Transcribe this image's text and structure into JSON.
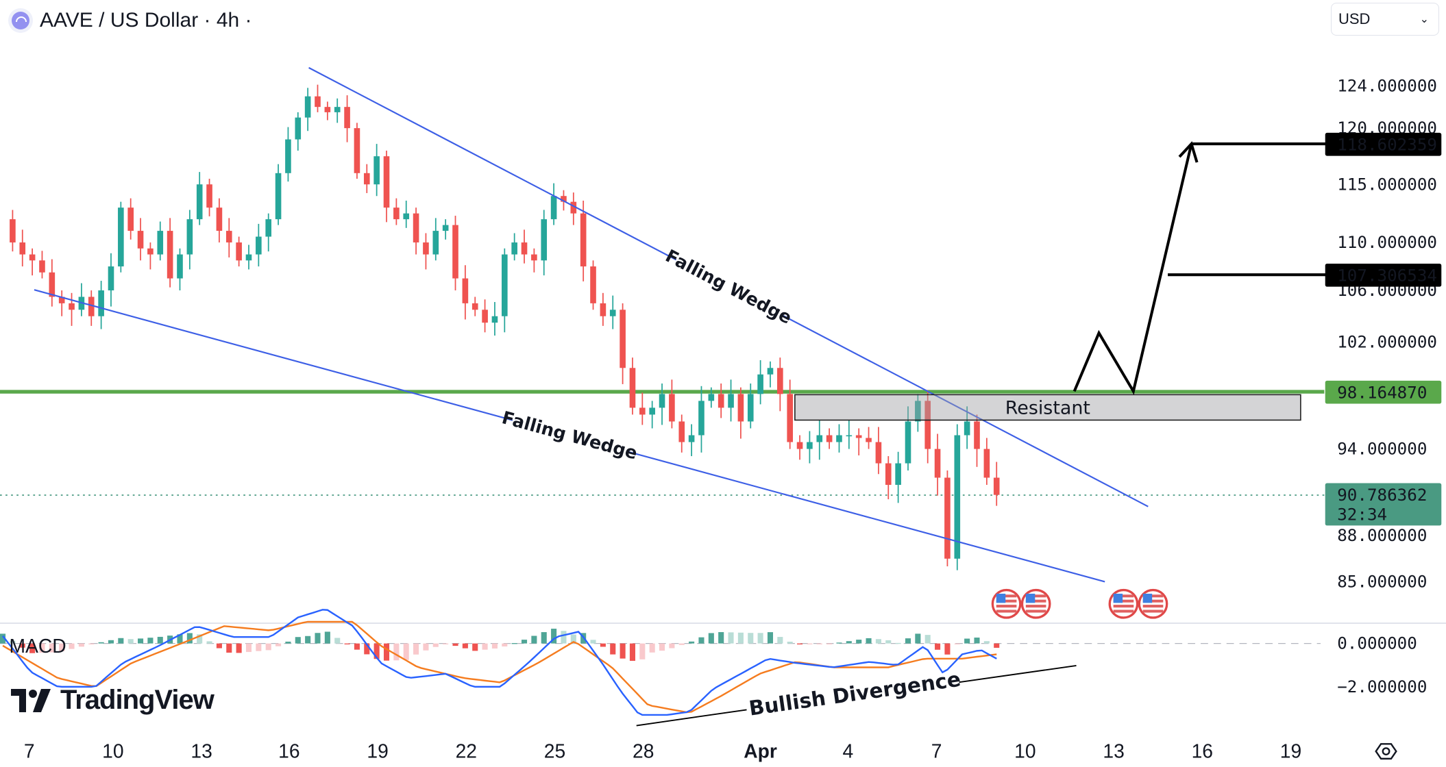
{
  "header": {
    "title": "AAVE / US Dollar · 4h ·",
    "symbol_icon": "aave-logo-icon"
  },
  "currency_select": {
    "value": "USD",
    "icon": "chevron-down-icon"
  },
  "logo": {
    "text": "TradingView"
  },
  "colors": {
    "up": "#26a69a",
    "down": "#ef5350",
    "trendline": "#3d5fe6",
    "support": "#5aa84b",
    "macd": "#2962ff",
    "signal": "#f57c1f",
    "last_price": "#4a9a82"
  },
  "chart_data": {
    "type": "candlestick",
    "title": "AAVE / US Dollar · 4h",
    "y_ticks": [
      "124.000000",
      "120.000000",
      "115.000000",
      "110.000000",
      "106.000000",
      "102.000000",
      "94.000000",
      "88.000000",
      "85.000000"
    ],
    "x_ticks": [
      {
        "label": "7",
        "index": 2.7
      },
      {
        "label": "10",
        "index": 11.2
      },
      {
        "label": "13",
        "index": 20.2
      },
      {
        "label": "16",
        "index": 29.1
      },
      {
        "label": "19",
        "index": 38.1
      },
      {
        "label": "22",
        "index": 47.1
      },
      {
        "label": "25",
        "index": 56.1
      },
      {
        "label": "28",
        "index": 65.1
      },
      {
        "label": "Apr",
        "index": 77
      },
      {
        "label": "4",
        "index": 85.9
      },
      {
        "label": "7",
        "index": 94.9
      },
      {
        "label": "10",
        "index": 103.9
      },
      {
        "label": "13",
        "index": 112.9
      },
      {
        "label": "16",
        "index": 121.9
      },
      {
        "label": "19",
        "index": 130.9
      }
    ],
    "closes": [
      112,
      110,
      109,
      108.5,
      107.5,
      105.5,
      105,
      104.5,
      105.5,
      104,
      106,
      108,
      113,
      111,
      109.5,
      109,
      111,
      107,
      109,
      112,
      115,
      113,
      111,
      110,
      108.5,
      109,
      110.5,
      112,
      116,
      119,
      121,
      123,
      122,
      121.5,
      122,
      120,
      116,
      115,
      117.5,
      113,
      112,
      112.5,
      110,
      109,
      111,
      111.5,
      107,
      105,
      104.5,
      103.5,
      104,
      109,
      110,
      109,
      108.5,
      112,
      114,
      113.5,
      112.5,
      108,
      105,
      104,
      104.5,
      100,
      97,
      96.5,
      97,
      98,
      96,
      94.5,
      95,
      97.5,
      98,
      97,
      98,
      96,
      98,
      99.5,
      100,
      98,
      94.5,
      94,
      94.5,
      95,
      94.5,
      95,
      95,
      94.8,
      94.5,
      93,
      91.5,
      93,
      96,
      97.5,
      94,
      92,
      86.5,
      95,
      96,
      94,
      92,
      90.8
    ],
    "last_price": {
      "value": "90.786362",
      "countdown": "32:34"
    },
    "price_labels": {
      "target_high": "118.602359",
      "target_mid": "107.306534",
      "support": "98.164870"
    },
    "annotations": {
      "upper_wedge": {
        "label": "Falling Wedge",
        "from": [
          31.1,
          125.7
        ],
        "to": [
          116.4,
          90.0
        ]
      },
      "lower_wedge": {
        "label": "Falling Wedge",
        "from": [
          3.2,
          106.05
        ],
        "to": [
          112.0,
          85.0
        ]
      },
      "support_line": 98.16487,
      "resistance_zone": {
        "label": "Resistant",
        "from_index": 80.5,
        "to_index": 131.9,
        "low": 96.1,
        "high": 97.95
      },
      "projection_path": [
        [
          108.9,
          98.2
        ],
        [
          111.4,
          102.7
        ],
        [
          114.9,
          98.2
        ],
        [
          120.8,
          118.6
        ]
      ],
      "target_lines": [
        {
          "from_index": 120.8,
          "price": 118.602359
        },
        {
          "from_index": 118.4,
          "price": 107.306534
        }
      ],
      "events": [
        {
          "index": 102,
          "icon": "us-flag-icon"
        },
        {
          "index": 105,
          "icon": "us-flag-icon"
        },
        {
          "index": 113.9,
          "icon": "us-flag-icon"
        },
        {
          "index": 116.9,
          "icon": "us-flag-icon"
        }
      ]
    },
    "macd": {
      "label": "MACD",
      "y_ticks": [
        "0.000000",
        "−2.000000"
      ],
      "macd_line": [
        [
          0,
          0.35
        ],
        [
          2.8,
          -1.3
        ],
        [
          5.6,
          -2
        ],
        [
          9.4,
          -2
        ],
        [
          12.2,
          -0.9
        ],
        [
          15.9,
          -0.1
        ],
        [
          19.7,
          0.8
        ],
        [
          23.4,
          0.3
        ],
        [
          27.2,
          0.3
        ],
        [
          30,
          1.2
        ],
        [
          32.8,
          1.6
        ],
        [
          35.6,
          0.8
        ],
        [
          38.4,
          -0.9
        ],
        [
          41.2,
          -1.6
        ],
        [
          45,
          -1.4
        ],
        [
          47.8,
          -2
        ],
        [
          50.6,
          -2
        ],
        [
          53.4,
          -0.9
        ],
        [
          56.2,
          0.3
        ],
        [
          58.6,
          0.55
        ],
        [
          60.9,
          -0.9
        ],
        [
          62.8,
          -2.2
        ],
        [
          64.7,
          -3.3
        ],
        [
          67.5,
          -3.3
        ],
        [
          69.8,
          -3.15
        ],
        [
          72.2,
          -2.1
        ],
        [
          75,
          -1.4
        ],
        [
          77.8,
          -0.7
        ],
        [
          80.6,
          -0.9
        ],
        [
          84.4,
          -1.1
        ],
        [
          88.1,
          -0.85
        ],
        [
          90.9,
          -1
        ],
        [
          93.7,
          -0.1
        ],
        [
          95.6,
          -1.4
        ],
        [
          97.5,
          -0.5
        ],
        [
          99.4,
          -0.3
        ],
        [
          101,
          -0.7
        ]
      ],
      "signal_line": [
        [
          0,
          -0.1
        ],
        [
          5.6,
          -1.6
        ],
        [
          9.4,
          -2
        ],
        [
          13.1,
          -0.9
        ],
        [
          18.7,
          0.1
        ],
        [
          22.5,
          0.8
        ],
        [
          27.2,
          0.6
        ],
        [
          30.9,
          1
        ],
        [
          35.6,
          1
        ],
        [
          38.4,
          -0.1
        ],
        [
          42.2,
          -1.1
        ],
        [
          46.9,
          -1.6
        ],
        [
          50.6,
          -1.8
        ],
        [
          54.4,
          -0.9
        ],
        [
          58.1,
          0.1
        ],
        [
          61.9,
          -1.1
        ],
        [
          65.6,
          -2.85
        ],
        [
          69.8,
          -3.2
        ],
        [
          73.1,
          -2.4
        ],
        [
          76.9,
          -1.4
        ],
        [
          80.6,
          -0.85
        ],
        [
          84.4,
          -1.1
        ],
        [
          90,
          -1.1
        ],
        [
          93.7,
          -0.7
        ],
        [
          97.5,
          -0.7
        ],
        [
          101,
          -0.5
        ]
      ],
      "divergence": {
        "label": "Bullish Divergence",
        "lines": [
          [
            [
              64.4,
              -3.79
            ],
            [
              75.6,
              -3.06
            ]
          ],
          [
            [
              97.2,
              -1.79
            ],
            [
              109.1,
              -1.02
            ]
          ]
        ]
      }
    }
  }
}
